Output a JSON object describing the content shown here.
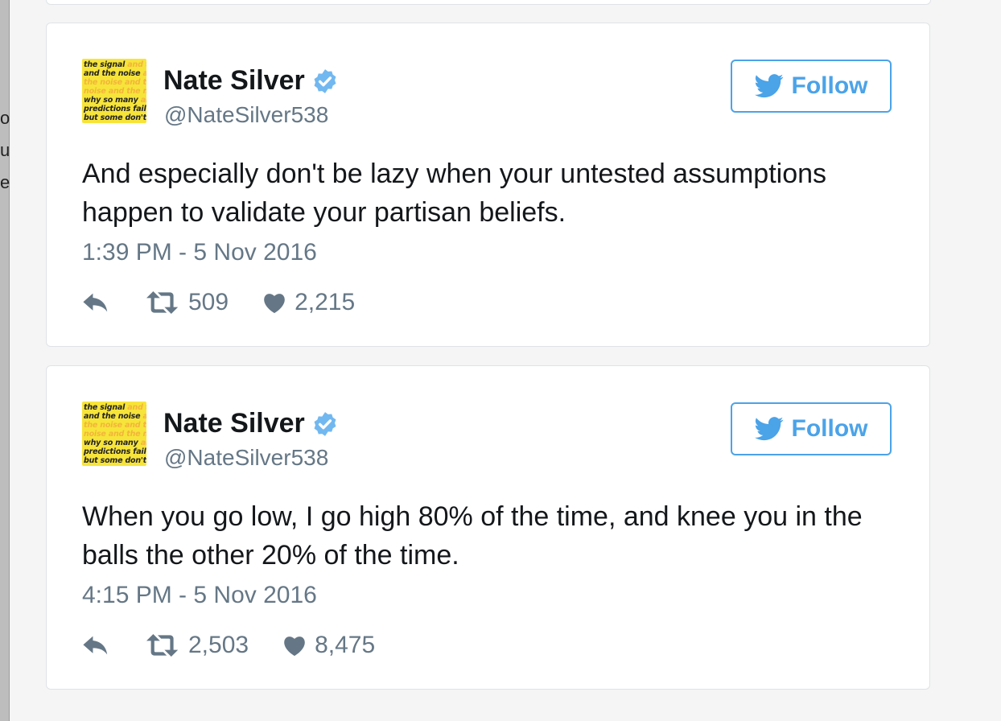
{
  "left_strip_fragments": [
    "o",
    "u",
    "e"
  ],
  "tweets": [
    {
      "author_name": "Nate Silver",
      "author_handle": "@NateSilver538",
      "follow_label": "Follow",
      "text": "And especially don't be lazy when your untested assumptions happen to validate your partisan beliefs.",
      "timestamp": "1:39 PM - 5 Nov 2016",
      "retweets": "509",
      "likes": "2,215"
    },
    {
      "author_name": "Nate Silver",
      "author_handle": "@NateSilver538",
      "follow_label": "Follow",
      "text": "When you go low, I go high 80% of the time, and knee you in the balls the other 20% of the time.",
      "timestamp": "4:15 PM - 5 Nov 2016",
      "retweets": "2,503",
      "likes": "8,475"
    }
  ],
  "avatar_lines": [
    {
      "black": "the signal",
      "faint": " and th"
    },
    {
      "black": "and the noise",
      "faint": " an"
    },
    {
      "black": "",
      "faint": "the noise and the"
    },
    {
      "black": "",
      "faint": "noise and the noi"
    },
    {
      "black": "why so many",
      "faint": " and"
    },
    {
      "black": "predictions fail–",
      "faint": ""
    },
    {
      "black": "but some don't",
      "faint": " t"
    }
  ],
  "colors": {
    "accent": "#4ba3e8",
    "secondary_text": "#657786",
    "verified": "#72b8f0",
    "avatar_bg": "#f7e43a"
  },
  "icons": {
    "reply": "reply-icon",
    "retweet": "retweet-icon",
    "like": "heart-icon",
    "verified": "verified-badge-icon",
    "bird": "twitter-bird-icon"
  }
}
